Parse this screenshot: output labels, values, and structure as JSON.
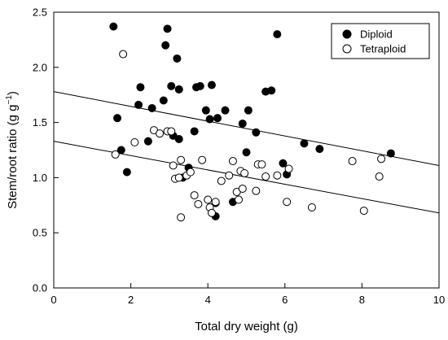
{
  "chart_data": {
    "type": "scatter",
    "xlabel": "Total dry weight (g)",
    "ylabel_main": "Stem/root ratio (g g",
    "ylabel_sup": "−1",
    "ylabel_close": ")",
    "xlim": [
      0,
      10
    ],
    "ylim": [
      0.0,
      2.5
    ],
    "x_ticks": [
      "0",
      "2",
      "4",
      "6",
      "8",
      "10"
    ],
    "y_ticks": [
      "0.0",
      "0.5",
      "1.0",
      "1.5",
      "2.0",
      "2.5"
    ],
    "grid": false,
    "legend_position": "top-right",
    "series": [
      {
        "name": "Diploid",
        "marker": "filled-circle",
        "color": "#000000",
        "x": [
          1.55,
          1.65,
          1.75,
          1.9,
          2.2,
          2.25,
          2.45,
          2.55,
          2.85,
          2.9,
          2.95,
          3.05,
          3.1,
          3.2,
          3.25,
          3.25,
          3.35,
          3.5,
          3.65,
          3.7,
          3.8,
          3.95,
          4.05,
          4.1,
          4.2,
          4.2,
          4.25,
          4.45,
          4.65,
          4.9,
          5.0,
          5.05,
          5.25,
          5.5,
          5.65,
          5.8,
          5.95,
          6.05,
          6.5,
          6.9,
          8.75
        ],
        "y": [
          2.37,
          1.54,
          1.25,
          1.05,
          1.66,
          1.82,
          1.33,
          1.63,
          1.7,
          2.2,
          2.35,
          1.83,
          1.38,
          2.08,
          1.8,
          1.35,
          1.0,
          1.09,
          1.42,
          1.82,
          1.83,
          1.61,
          1.53,
          1.84,
          0.77,
          0.65,
          1.54,
          1.61,
          0.78,
          1.49,
          1.23,
          1.61,
          1.41,
          1.78,
          1.79,
          2.3,
          1.13,
          1.03,
          1.31,
          1.26,
          1.22
        ]
      },
      {
        "name": "Tetraploid",
        "marker": "open-circle",
        "color": "#000000",
        "x": [
          1.6,
          1.8,
          2.1,
          2.6,
          2.75,
          2.95,
          3.05,
          3.1,
          3.15,
          3.25,
          3.3,
          3.3,
          3.45,
          3.55,
          3.65,
          3.75,
          3.85,
          4.0,
          4.05,
          4.1,
          4.2,
          4.35,
          4.55,
          4.65,
          4.75,
          4.8,
          4.85,
          4.9,
          4.95,
          5.25,
          5.3,
          5.4,
          5.5,
          5.8,
          6.05,
          6.1,
          6.7,
          7.75,
          8.05,
          8.45,
          8.5
        ],
        "y": [
          1.21,
          2.12,
          1.32,
          1.43,
          1.4,
          1.42,
          1.42,
          1.11,
          0.99,
          1.0,
          0.64,
          1.16,
          1.02,
          1.05,
          0.84,
          0.76,
          1.16,
          0.8,
          0.73,
          0.68,
          0.78,
          0.97,
          1.02,
          1.15,
          0.87,
          0.8,
          1.06,
          0.9,
          1.04,
          0.88,
          1.12,
          1.12,
          1.01,
          1.02,
          0.78,
          1.08,
          0.73,
          1.15,
          0.7,
          1.01,
          1.17
        ]
      }
    ],
    "regression_lines": [
      {
        "x": [
          0,
          10
        ],
        "y": [
          1.78,
          1.11
        ]
      },
      {
        "x": [
          0,
          10
        ],
        "y": [
          1.33,
          0.68
        ]
      }
    ]
  }
}
